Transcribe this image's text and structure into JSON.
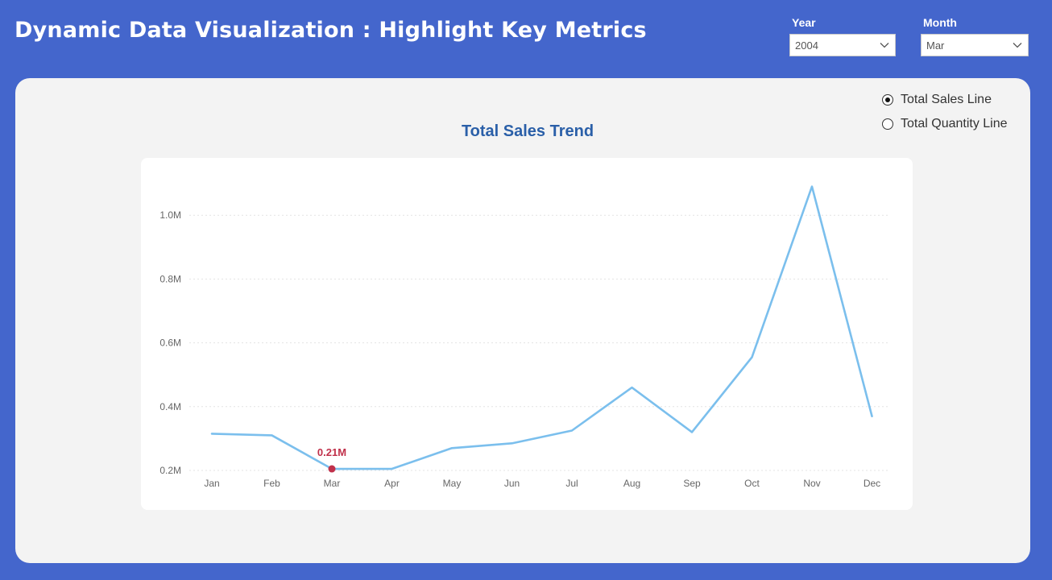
{
  "header": {
    "title": "Dynamic Data Visualization : Highlight Key Metrics"
  },
  "filters": {
    "year": {
      "label": "Year",
      "value": "2004"
    },
    "month": {
      "label": "Month",
      "value": "Mar"
    }
  },
  "toggle": {
    "options": [
      {
        "label": "Total Sales Line",
        "selected": true
      },
      {
        "label": "Total Quantity Line",
        "selected": false
      }
    ]
  },
  "colors": {
    "line": "#7bbfed",
    "highlight": "#c0304a"
  },
  "chart_data": {
    "type": "line",
    "title": "Total Sales Trend",
    "xlabel": "",
    "ylabel": "",
    "categories": [
      "Jan",
      "Feb",
      "Mar",
      "Apr",
      "May",
      "Jun",
      "Jul",
      "Aug",
      "Sep",
      "Oct",
      "Nov",
      "Dec"
    ],
    "values": [
      0.315,
      0.31,
      0.205,
      0.205,
      0.27,
      0.285,
      0.325,
      0.46,
      0.32,
      0.555,
      1.09,
      0.37
    ],
    "y_ticks": [
      {
        "value": 0.2,
        "label": "0.2M"
      },
      {
        "value": 0.4,
        "label": "0.4M"
      },
      {
        "value": 0.6,
        "label": "0.6M"
      },
      {
        "value": 0.8,
        "label": "0.8M"
      },
      {
        "value": 1.0,
        "label": "1.0M"
      }
    ],
    "ylim": [
      0.2,
      1.1
    ],
    "grid": true,
    "highlight": {
      "category": "Mar",
      "value": 0.205,
      "label": "0.21M"
    }
  }
}
